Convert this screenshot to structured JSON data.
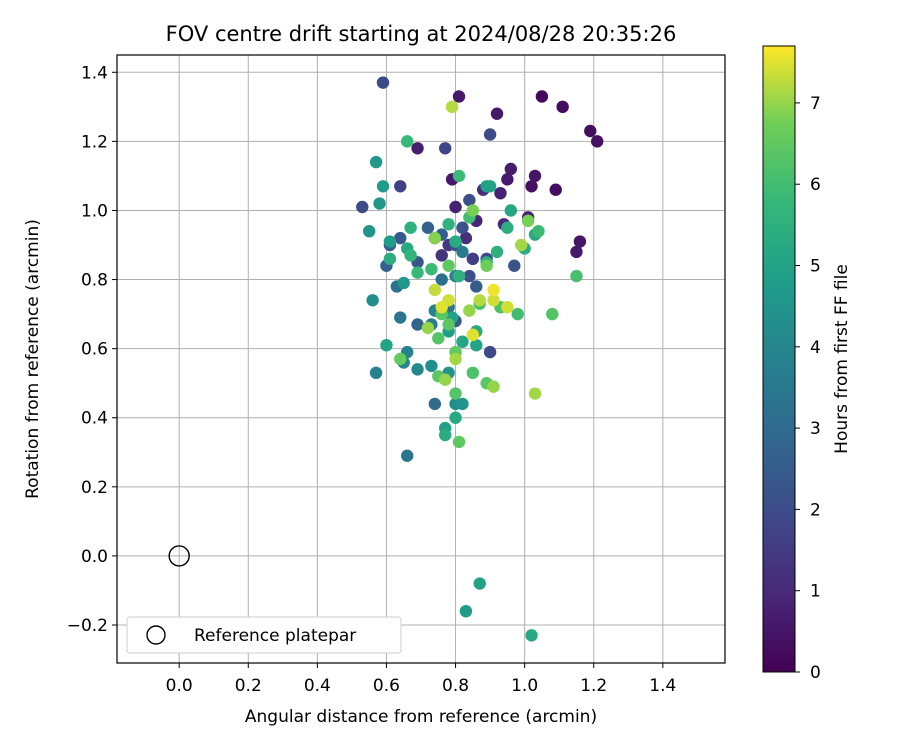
{
  "chart_data": {
    "type": "scatter",
    "title": "FOV centre drift starting at 2024/08/28 20:35:26",
    "xlabel": "Angular distance from reference (arcmin)",
    "ylabel": "Rotation from reference (arcmin)",
    "xlim": [
      -0.18,
      1.58
    ],
    "ylim": [
      -0.31,
      1.45
    ],
    "xticks": [
      0.0,
      0.2,
      0.4,
      0.6,
      0.8,
      1.0,
      1.2,
      1.4
    ],
    "yticks": [
      -0.2,
      0.0,
      0.2,
      0.4,
      0.6,
      0.8,
      1.0,
      1.2,
      1.4
    ],
    "xtick_labels": [
      "0.0",
      "0.2",
      "0.4",
      "0.6",
      "0.8",
      "1.0",
      "1.2",
      "1.4"
    ],
    "ytick_labels": [
      "−0.2",
      "0.0",
      "0.2",
      "0.4",
      "0.6",
      "0.8",
      "1.0",
      "1.2",
      "1.4"
    ],
    "grid": true,
    "colormap": "viridis",
    "colorbar": {
      "label": "Hours from first FF file",
      "range": [
        0,
        7.7
      ],
      "ticks": [
        0,
        1,
        2,
        3,
        4,
        5,
        6,
        7
      ],
      "tick_labels": [
        "0",
        "1",
        "2",
        "3",
        "4",
        "5",
        "6",
        "7"
      ]
    },
    "legend": {
      "label": "Reference platepar",
      "location": "lower-left"
    },
    "reference_point": {
      "x": 0.0,
      "y": 0.0
    },
    "points": [
      {
        "x": 1.05,
        "y": 1.33,
        "c": 0.2
      },
      {
        "x": 1.11,
        "y": 1.3,
        "c": 0.3
      },
      {
        "x": 1.19,
        "y": 1.23,
        "c": 0.3
      },
      {
        "x": 1.21,
        "y": 1.2,
        "c": 0.4
      },
      {
        "x": 0.81,
        "y": 1.33,
        "c": 0.6
      },
      {
        "x": 0.92,
        "y": 1.28,
        "c": 0.6
      },
      {
        "x": 1.03,
        "y": 1.1,
        "c": 0.5
      },
      {
        "x": 1.09,
        "y": 1.06,
        "c": 0.3
      },
      {
        "x": 0.96,
        "y": 1.12,
        "c": 0.7
      },
      {
        "x": 0.95,
        "y": 1.09,
        "c": 0.6
      },
      {
        "x": 0.93,
        "y": 1.05,
        "c": 0.8
      },
      {
        "x": 1.02,
        "y": 1.07,
        "c": 0.4
      },
      {
        "x": 0.79,
        "y": 1.09,
        "c": 0.6
      },
      {
        "x": 0.69,
        "y": 1.18,
        "c": 0.7
      },
      {
        "x": 0.8,
        "y": 1.01,
        "c": 0.8
      },
      {
        "x": 0.86,
        "y": 0.97,
        "c": 0.9
      },
      {
        "x": 1.16,
        "y": 0.91,
        "c": 0.5
      },
      {
        "x": 1.15,
        "y": 0.88,
        "c": 0.6
      },
      {
        "x": 1.01,
        "y": 0.98,
        "c": 0.8
      },
      {
        "x": 0.94,
        "y": 0.96,
        "c": 1.0
      },
      {
        "x": 0.88,
        "y": 1.06,
        "c": 1.1
      },
      {
        "x": 0.83,
        "y": 0.92,
        "c": 1.2
      },
      {
        "x": 0.76,
        "y": 0.87,
        "c": 1.3
      },
      {
        "x": 0.78,
        "y": 0.9,
        "c": 1.4
      },
      {
        "x": 0.85,
        "y": 0.86,
        "c": 1.6
      },
      {
        "x": 0.59,
        "y": 1.37,
        "c": 1.9
      },
      {
        "x": 0.9,
        "y": 1.22,
        "c": 2.0
      },
      {
        "x": 0.77,
        "y": 1.18,
        "c": 1.8
      },
      {
        "x": 0.64,
        "y": 1.07,
        "c": 1.7
      },
      {
        "x": 0.53,
        "y": 1.01,
        "c": 2.0
      },
      {
        "x": 0.84,
        "y": 1.03,
        "c": 2.1
      },
      {
        "x": 0.82,
        "y": 0.95,
        "c": 2.2
      },
      {
        "x": 0.8,
        "y": 0.9,
        "c": 2.3
      },
      {
        "x": 0.74,
        "y": 0.92,
        "c": 2.0
      },
      {
        "x": 0.97,
        "y": 0.84,
        "c": 2.2
      },
      {
        "x": 0.89,
        "y": 0.86,
        "c": 1.9
      },
      {
        "x": 0.84,
        "y": 0.81,
        "c": 2.1
      },
      {
        "x": 0.86,
        "y": 0.78,
        "c": 2.5
      },
      {
        "x": 0.9,
        "y": 0.59,
        "c": 2.0
      },
      {
        "x": 0.64,
        "y": 0.92,
        "c": 2.4
      },
      {
        "x": 0.61,
        "y": 0.9,
        "c": 2.5
      },
      {
        "x": 0.6,
        "y": 0.84,
        "c": 2.6
      },
      {
        "x": 0.69,
        "y": 0.85,
        "c": 2.3
      },
      {
        "x": 0.76,
        "y": 0.93,
        "c": 2.6
      },
      {
        "x": 0.72,
        "y": 0.95,
        "c": 2.7
      },
      {
        "x": 0.8,
        "y": 0.68,
        "c": 2.4
      },
      {
        "x": 0.69,
        "y": 0.67,
        "c": 2.8
      },
      {
        "x": 0.74,
        "y": 0.44,
        "c": 3.0
      },
      {
        "x": 0.66,
        "y": 0.29,
        "c": 3.4
      },
      {
        "x": 0.63,
        "y": 0.78,
        "c": 3.3
      },
      {
        "x": 0.64,
        "y": 0.69,
        "c": 3.4
      },
      {
        "x": 0.73,
        "y": 0.67,
        "c": 3.5
      },
      {
        "x": 0.78,
        "y": 0.72,
        "c": 3.3
      },
      {
        "x": 0.76,
        "y": 0.8,
        "c": 3.2
      },
      {
        "x": 0.82,
        "y": 0.88,
        "c": 3.6
      },
      {
        "x": 0.74,
        "y": 0.71,
        "c": 3.8
      },
      {
        "x": 0.8,
        "y": 0.81,
        "c": 3.9
      },
      {
        "x": 0.57,
        "y": 0.53,
        "c": 3.8
      },
      {
        "x": 0.66,
        "y": 0.59,
        "c": 3.9
      },
      {
        "x": 0.65,
        "y": 0.56,
        "c": 4.0
      },
      {
        "x": 0.69,
        "y": 0.54,
        "c": 4.1
      },
      {
        "x": 0.73,
        "y": 0.55,
        "c": 4.3
      },
      {
        "x": 0.78,
        "y": 0.53,
        "c": 4.4
      },
      {
        "x": 0.8,
        "y": 0.44,
        "c": 4.2
      },
      {
        "x": 0.82,
        "y": 0.44,
        "c": 4.5
      },
      {
        "x": 0.56,
        "y": 0.74,
        "c": 4.3
      },
      {
        "x": 0.57,
        "y": 1.14,
        "c": 4.6
      },
      {
        "x": 0.58,
        "y": 1.02,
        "c": 4.6
      },
      {
        "x": 0.59,
        "y": 1.07,
        "c": 4.7
      },
      {
        "x": 0.55,
        "y": 0.94,
        "c": 4.5
      },
      {
        "x": 0.61,
        "y": 0.91,
        "c": 4.8
      },
      {
        "x": 0.65,
        "y": 0.79,
        "c": 4.6
      },
      {
        "x": 0.6,
        "y": 0.61,
        "c": 5.0
      },
      {
        "x": 0.78,
        "y": 0.65,
        "c": 4.8
      },
      {
        "x": 0.79,
        "y": 0.69,
        "c": 5.0
      },
      {
        "x": 0.82,
        "y": 0.62,
        "c": 5.1
      },
      {
        "x": 0.86,
        "y": 0.65,
        "c": 5.2
      },
      {
        "x": 0.86,
        "y": 0.61,
        "c": 5.0
      },
      {
        "x": 0.77,
        "y": 0.37,
        "c": 4.9
      },
      {
        "x": 0.8,
        "y": 0.4,
        "c": 5.2
      },
      {
        "x": 0.77,
        "y": 0.35,
        "c": 5.3
      },
      {
        "x": 0.83,
        "y": -0.16,
        "c": 4.7
      },
      {
        "x": 0.87,
        "y": -0.08,
        "c": 5.0
      },
      {
        "x": 1.02,
        "y": -0.23,
        "c": 5.2
      },
      {
        "x": 0.89,
        "y": 1.07,
        "c": 4.9
      },
      {
        "x": 0.9,
        "y": 1.07,
        "c": 5.0
      },
      {
        "x": 0.96,
        "y": 1.0,
        "c": 5.1
      },
      {
        "x": 0.95,
        "y": 0.95,
        "c": 5.4
      },
      {
        "x": 1.0,
        "y": 0.89,
        "c": 5.3
      },
      {
        "x": 1.03,
        "y": 0.93,
        "c": 5.2
      },
      {
        "x": 0.92,
        "y": 0.88,
        "c": 5.5
      },
      {
        "x": 0.89,
        "y": 0.85,
        "c": 5.4
      },
      {
        "x": 0.8,
        "y": 0.91,
        "c": 5.3
      },
      {
        "x": 0.78,
        "y": 0.96,
        "c": 5.6
      },
      {
        "x": 0.66,
        "y": 0.89,
        "c": 5.2
      },
      {
        "x": 0.67,
        "y": 0.95,
        "c": 5.5
      },
      {
        "x": 0.66,
        "y": 1.2,
        "c": 5.8
      },
      {
        "x": 0.81,
        "y": 1.1,
        "c": 5.9
      },
      {
        "x": 0.67,
        "y": 0.87,
        "c": 5.7
      },
      {
        "x": 0.61,
        "y": 0.86,
        "c": 5.4
      },
      {
        "x": 0.69,
        "y": 0.82,
        "c": 5.8
      },
      {
        "x": 0.73,
        "y": 0.83,
        "c": 5.9
      },
      {
        "x": 0.81,
        "y": 0.81,
        "c": 5.5
      },
      {
        "x": 0.84,
        "y": 0.98,
        "c": 6.0
      },
      {
        "x": 1.04,
        "y": 0.94,
        "c": 5.9
      },
      {
        "x": 1.15,
        "y": 0.81,
        "c": 6.1
      },
      {
        "x": 1.08,
        "y": 0.7,
        "c": 6.3
      },
      {
        "x": 0.98,
        "y": 0.7,
        "c": 6.0
      },
      {
        "x": 0.93,
        "y": 0.72,
        "c": 6.2
      },
      {
        "x": 0.87,
        "y": 0.73,
        "c": 6.1
      },
      {
        "x": 0.76,
        "y": 0.7,
        "c": 6.4
      },
      {
        "x": 0.75,
        "y": 0.63,
        "c": 6.3
      },
      {
        "x": 0.78,
        "y": 0.67,
        "c": 6.4
      },
      {
        "x": 0.8,
        "y": 0.59,
        "c": 6.5
      },
      {
        "x": 0.85,
        "y": 0.53,
        "c": 6.2
      },
      {
        "x": 0.75,
        "y": 0.52,
        "c": 6.4
      },
      {
        "x": 0.8,
        "y": 0.47,
        "c": 6.3
      },
      {
        "x": 0.81,
        "y": 0.33,
        "c": 6.5
      },
      {
        "x": 0.89,
        "y": 0.5,
        "c": 6.4
      },
      {
        "x": 0.64,
        "y": 0.57,
        "c": 6.6
      },
      {
        "x": 0.78,
        "y": 0.84,
        "c": 6.5
      },
      {
        "x": 0.89,
        "y": 0.84,
        "c": 6.7
      },
      {
        "x": 1.01,
        "y": 0.97,
        "c": 6.8
      },
      {
        "x": 0.74,
        "y": 0.92,
        "c": 6.9
      },
      {
        "x": 0.85,
        "y": 1.0,
        "c": 6.8
      },
      {
        "x": 0.72,
        "y": 0.66,
        "c": 7.0
      },
      {
        "x": 0.77,
        "y": 0.51,
        "c": 7.0
      },
      {
        "x": 0.8,
        "y": 0.57,
        "c": 7.1
      },
      {
        "x": 0.84,
        "y": 0.71,
        "c": 7.0
      },
      {
        "x": 0.87,
        "y": 0.74,
        "c": 7.2
      },
      {
        "x": 0.91,
        "y": 0.49,
        "c": 7.0
      },
      {
        "x": 1.03,
        "y": 0.47,
        "c": 7.1
      },
      {
        "x": 0.99,
        "y": 0.9,
        "c": 7.1
      },
      {
        "x": 0.79,
        "y": 1.3,
        "c": 7.2
      },
      {
        "x": 0.74,
        "y": 0.77,
        "c": 7.3
      },
      {
        "x": 0.78,
        "y": 0.74,
        "c": 7.4
      },
      {
        "x": 0.85,
        "y": 0.64,
        "c": 7.5
      },
      {
        "x": 0.91,
        "y": 0.74,
        "c": 7.4
      },
      {
        "x": 0.91,
        "y": 0.77,
        "c": 7.6
      },
      {
        "x": 0.95,
        "y": 0.72,
        "c": 7.4
      },
      {
        "x": 0.76,
        "y": 0.72,
        "c": 7.5
      }
    ]
  }
}
